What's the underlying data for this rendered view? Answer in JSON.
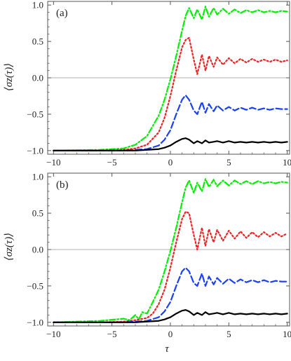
{
  "chart_data": [
    {
      "type": "line",
      "panel_label": "(a)",
      "ylabel": "⟨σz(τ)⟩",
      "xlabel": "",
      "xlim": [
        -10.5,
        10.2
      ],
      "ylim": [
        -1.05,
        1.05
      ],
      "x_ticks": [
        -10,
        -5,
        0,
        5,
        10
      ],
      "y_ticks": [
        -1.0,
        -0.5,
        0.0,
        0.5,
        1.0
      ],
      "x_tick_labels": [
        "−10",
        "−5",
        "0",
        "5",
        "10"
      ],
      "y_tick_labels": [
        "−1.0",
        "−0.5",
        "0.0",
        "0.5",
        "1.0"
      ],
      "reference_line_y": 0.0,
      "series": [
        {
          "color": "#00ee00",
          "dash": "dash-dot",
          "width": 2.2,
          "x": [
            -10,
            -6,
            -4,
            -3,
            -2,
            -1,
            -0.5,
            0,
            0.5,
            1,
            1.3,
            1.6,
            2,
            2.3,
            2.7,
            3,
            3.3,
            3.7,
            4,
            4.5,
            5,
            5.5,
            6,
            6.5,
            7,
            7.5,
            8,
            8.5,
            9,
            9.5,
            10
          ],
          "y": [
            -1,
            -0.99,
            -0.97,
            -0.92,
            -0.8,
            -0.52,
            -0.3,
            -0.02,
            0.3,
            0.65,
            0.85,
            0.96,
            0.82,
            0.94,
            0.8,
            0.98,
            0.84,
            0.96,
            0.87,
            0.95,
            0.88,
            0.94,
            0.89,
            0.93,
            0.9,
            0.93,
            0.9,
            0.92,
            0.9,
            0.92,
            0.91
          ]
        },
        {
          "color": "#ee2222",
          "dash": "dot",
          "width": 2.2,
          "x": [
            -10,
            -6,
            -4,
            -3,
            -2,
            -1,
            -0.5,
            0,
            0.5,
            1,
            1.3,
            1.6,
            2,
            2.3,
            2.7,
            3,
            3.3,
            3.7,
            4,
            4.5,
            5,
            5.5,
            6,
            6.5,
            7,
            7.5,
            8,
            8.5,
            9,
            9.5,
            10
          ],
          "y": [
            -1,
            -1,
            -0.99,
            -0.97,
            -0.92,
            -0.75,
            -0.55,
            -0.25,
            0.1,
            0.42,
            0.52,
            0.55,
            0.25,
            0.05,
            0.32,
            0.1,
            0.3,
            0.15,
            0.28,
            0.18,
            0.27,
            0.2,
            0.26,
            0.21,
            0.26,
            0.22,
            0.25,
            0.22,
            0.25,
            0.22,
            0.24
          ]
        },
        {
          "color": "#1a3fff",
          "dash": "dash",
          "width": 2.2,
          "x": [
            -10,
            -6,
            -4,
            -3,
            -2,
            -1,
            -0.5,
            0,
            0.5,
            1,
            1.3,
            1.6,
            2,
            2.3,
            2.7,
            3,
            3.3,
            3.7,
            4,
            4.5,
            5,
            5.5,
            6,
            6.5,
            7,
            7.5,
            8,
            8.5,
            9,
            9.5,
            10
          ],
          "y": [
            -1,
            -1,
            -1,
            -0.99,
            -0.98,
            -0.93,
            -0.85,
            -0.72,
            -0.5,
            -0.3,
            -0.24,
            -0.3,
            -0.45,
            -0.5,
            -0.33,
            -0.48,
            -0.36,
            -0.46,
            -0.38,
            -0.45,
            -0.4,
            -0.45,
            -0.41,
            -0.44,
            -0.41,
            -0.44,
            -0.42,
            -0.44,
            -0.42,
            -0.43,
            -0.43
          ]
        },
        {
          "color": "#000000",
          "dash": "solid",
          "width": 2.2,
          "x": [
            -10,
            -6,
            -4,
            -3,
            -2,
            -1,
            -0.5,
            0,
            0.5,
            1,
            1.3,
            1.6,
            2,
            2.3,
            2.7,
            3,
            3.3,
            3.7,
            4,
            4.5,
            5,
            5.5,
            6,
            6.5,
            7,
            7.5,
            8,
            8.5,
            9,
            9.5,
            10
          ],
          "y": [
            -1,
            -1,
            -1,
            -1,
            -0.99,
            -0.98,
            -0.96,
            -0.93,
            -0.88,
            -0.84,
            -0.83,
            -0.85,
            -0.9,
            -0.87,
            -0.9,
            -0.86,
            -0.89,
            -0.88,
            -0.87,
            -0.89,
            -0.87,
            -0.89,
            -0.88,
            -0.89,
            -0.88,
            -0.89,
            -0.88,
            -0.89,
            -0.88,
            -0.89,
            -0.88
          ]
        }
      ]
    },
    {
      "type": "line",
      "panel_label": "(b)",
      "ylabel": "⟨σz(τ)⟩",
      "xlabel": "τ",
      "xlim": [
        -10.5,
        10.2
      ],
      "ylim": [
        -1.05,
        1.05
      ],
      "x_ticks": [
        -10,
        -5,
        0,
        5,
        10
      ],
      "y_ticks": [
        -1.0,
        -0.5,
        0.0,
        0.5,
        1.0
      ],
      "x_tick_labels": [
        "−10",
        "−5",
        "0",
        "5",
        "10"
      ],
      "y_tick_labels": [
        "−1.0",
        "−0.5",
        "0.0",
        "0.5",
        "1.0"
      ],
      "reference_line_y": 0.0,
      "series": [
        {
          "color": "#00ee00",
          "dash": "dash-dot",
          "width": 2.2,
          "x": [
            -10,
            -8,
            -6,
            -4,
            -3.5,
            -3,
            -2.7,
            -2.4,
            -2,
            -1.5,
            -1,
            -0.5,
            0,
            0.5,
            1,
            1.3,
            1.6,
            2,
            2.3,
            2.7,
            3,
            3.3,
            3.7,
            4,
            4.5,
            5,
            5.5,
            6,
            6.5,
            7,
            7.5,
            8,
            8.5,
            9,
            9.5,
            10
          ],
          "y": [
            -1,
            -0.99,
            -0.98,
            -0.95,
            -0.97,
            -0.9,
            -0.96,
            -0.86,
            -0.88,
            -0.72,
            -0.55,
            -0.3,
            -0.02,
            0.3,
            0.65,
            0.85,
            0.95,
            0.78,
            0.92,
            0.8,
            0.97,
            0.86,
            0.96,
            0.87,
            0.95,
            0.88,
            0.95,
            0.9,
            0.94,
            0.9,
            0.94,
            0.91,
            0.93,
            0.91,
            0.93,
            0.92
          ]
        },
        {
          "color": "#ee2222",
          "dash": "dot",
          "width": 2.2,
          "x": [
            -10,
            -6,
            -4,
            -3,
            -2,
            -1.5,
            -1,
            -0.5,
            0,
            0.5,
            1,
            1.3,
            1.6,
            2,
            2.3,
            2.7,
            3,
            3.3,
            3.7,
            4,
            4.5,
            5,
            5.5,
            6,
            6.5,
            7,
            7.5,
            8,
            8.5,
            9,
            9.5,
            10
          ],
          "y": [
            -1,
            -1,
            -0.99,
            -0.97,
            -0.94,
            -0.88,
            -0.75,
            -0.55,
            -0.25,
            0.1,
            0.42,
            0.52,
            0.5,
            0.2,
            0.0,
            0.3,
            0.05,
            0.28,
            0.1,
            0.27,
            0.12,
            0.26,
            0.15,
            0.25,
            0.16,
            0.24,
            0.17,
            0.24,
            0.18,
            0.23,
            0.18,
            0.22
          ]
        },
        {
          "color": "#1a3fff",
          "dash": "dash",
          "width": 2.2,
          "x": [
            -10,
            -6,
            -4,
            -3,
            -2,
            -1,
            -0.5,
            0,
            0.5,
            1,
            1.3,
            1.6,
            2,
            2.3,
            2.7,
            3,
            3.3,
            3.7,
            4,
            4.5,
            5,
            5.5,
            6,
            6.5,
            7,
            7.5,
            8,
            8.5,
            9,
            9.5,
            10
          ],
          "y": [
            -1,
            -1,
            -1,
            -0.99,
            -0.98,
            -0.93,
            -0.85,
            -0.72,
            -0.5,
            -0.3,
            -0.25,
            -0.3,
            -0.46,
            -0.5,
            -0.33,
            -0.5,
            -0.37,
            -0.48,
            -0.39,
            -0.47,
            -0.4,
            -0.46,
            -0.41,
            -0.45,
            -0.42,
            -0.45,
            -0.42,
            -0.45,
            -0.43,
            -0.44,
            -0.44
          ]
        },
        {
          "color": "#000000",
          "dash": "solid",
          "width": 2.2,
          "x": [
            -10,
            -6,
            -4,
            -3,
            -2,
            -1,
            -0.5,
            0,
            0.5,
            1,
            1.3,
            1.6,
            2,
            2.3,
            2.7,
            3,
            3.3,
            3.7,
            4,
            4.5,
            5,
            5.5,
            6,
            6.5,
            7,
            7.5,
            8,
            8.5,
            9,
            9.5,
            10
          ],
          "y": [
            -1,
            -1,
            -1,
            -1,
            -0.99,
            -0.98,
            -0.96,
            -0.93,
            -0.88,
            -0.84,
            -0.83,
            -0.85,
            -0.9,
            -0.87,
            -0.9,
            -0.86,
            -0.89,
            -0.88,
            -0.87,
            -0.89,
            -0.87,
            -0.89,
            -0.88,
            -0.89,
            -0.88,
            -0.89,
            -0.88,
            -0.89,
            -0.88,
            -0.89,
            -0.88
          ]
        }
      ]
    }
  ]
}
